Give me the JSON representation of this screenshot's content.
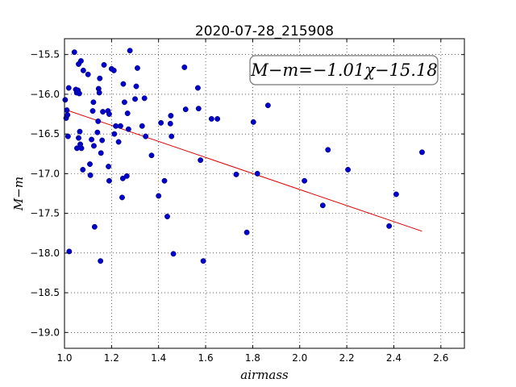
{
  "chart_data": {
    "type": "scatter",
    "title": "2020-07-28_215908",
    "xlabel": "airmass",
    "ylabel": "M−m",
    "xlim": [
      1.0,
      2.7
    ],
    "ylim": [
      -19.2,
      -15.3
    ],
    "y_inverted": true,
    "grid": true,
    "x_ticks": [
      1.0,
      1.2,
      1.4,
      1.6,
      1.8,
      2.0,
      2.2,
      2.4,
      2.6
    ],
    "x_tick_labels": [
      "1.0",
      "1.2",
      "1.4",
      "1.6",
      "1.8",
      "2.0",
      "2.2",
      "2.4",
      "2.6"
    ],
    "y_ticks": [
      -15.5,
      -16.0,
      -16.5,
      -17.0,
      -17.5,
      -18.0,
      -18.5,
      -19.0
    ],
    "y_tick_labels": [
      "−15.5",
      "−16.0",
      "−16.5",
      "−17.0",
      "−17.5",
      "−18.0",
      "−18.5",
      "−19.0"
    ],
    "annotation": "M−m=−1.01χ−15.18",
    "fit_line": {
      "slope": -1.01,
      "intercept": -15.18,
      "x_range": [
        1.0,
        2.52
      ],
      "color": "#dd0000"
    },
    "point_color": "#0000cc",
    "points": [
      {
        "x": 1.003,
        "y": -16.07
      },
      {
        "x": 1.007,
        "y": -16.3
      },
      {
        "x": 1.01,
        "y": -16.2
      },
      {
        "x": 1.013,
        "y": -16.26
      },
      {
        "x": 1.018,
        "y": -15.92
      },
      {
        "x": 1.015,
        "y": -16.53
      },
      {
        "x": 1.02,
        "y": -17.98
      },
      {
        "x": 1.042,
        "y": -15.47
      },
      {
        "x": 1.048,
        "y": -15.94
      },
      {
        "x": 1.052,
        "y": -15.98
      },
      {
        "x": 1.057,
        "y": -15.95
      },
      {
        "x": 1.06,
        "y": -15.62
      },
      {
        "x": 1.063,
        "y": -15.99
      },
      {
        "x": 1.07,
        "y": -15.58
      },
      {
        "x": 1.08,
        "y": -15.7
      },
      {
        "x": 1.1,
        "y": -15.75
      },
      {
        "x": 1.053,
        "y": -16.68
      },
      {
        "x": 1.06,
        "y": -16.55
      },
      {
        "x": 1.065,
        "y": -16.47
      },
      {
        "x": 1.067,
        "y": -16.63
      },
      {
        "x": 1.072,
        "y": -16.68
      },
      {
        "x": 1.078,
        "y": -16.95
      },
      {
        "x": 1.108,
        "y": -16.88
      },
      {
        "x": 1.11,
        "y": -17.02
      },
      {
        "x": 1.115,
        "y": -16.57
      },
      {
        "x": 1.12,
        "y": -16.21
      },
      {
        "x": 1.123,
        "y": -16.1
      },
      {
        "x": 1.125,
        "y": -16.65
      },
      {
        "x": 1.128,
        "y": -17.67
      },
      {
        "x": 1.14,
        "y": -16.48
      },
      {
        "x": 1.143,
        "y": -16.34
      },
      {
        "x": 1.145,
        "y": -15.93
      },
      {
        "x": 1.148,
        "y": -15.98
      },
      {
        "x": 1.15,
        "y": -15.8
      },
      {
        "x": 1.153,
        "y": -18.1
      },
      {
        "x": 1.155,
        "y": -16.74
      },
      {
        "x": 1.16,
        "y": -16.58
      },
      {
        "x": 1.163,
        "y": -16.22
      },
      {
        "x": 1.168,
        "y": -15.63
      },
      {
        "x": 1.185,
        "y": -16.21
      },
      {
        "x": 1.19,
        "y": -16.25
      },
      {
        "x": 1.187,
        "y": -16.91
      },
      {
        "x": 1.19,
        "y": -17.09
      },
      {
        "x": 1.2,
        "y": -15.68
      },
      {
        "x": 1.21,
        "y": -15.7
      },
      {
        "x": 1.212,
        "y": -16.5
      },
      {
        "x": 1.218,
        "y": -16.4
      },
      {
        "x": 1.23,
        "y": -16.6
      },
      {
        "x": 1.238,
        "y": -16.4
      },
      {
        "x": 1.245,
        "y": -17.3
      },
      {
        "x": 1.248,
        "y": -17.06
      },
      {
        "x": 1.25,
        "y": -15.87
      },
      {
        "x": 1.255,
        "y": -16.1
      },
      {
        "x": 1.265,
        "y": -17.03
      },
      {
        "x": 1.268,
        "y": -16.24
      },
      {
        "x": 1.272,
        "y": -16.44
      },
      {
        "x": 1.278,
        "y": -15.45
      },
      {
        "x": 1.3,
        "y": -16.06
      },
      {
        "x": 1.305,
        "y": -15.9
      },
      {
        "x": 1.31,
        "y": -15.67
      },
      {
        "x": 1.33,
        "y": -16.4
      },
      {
        "x": 1.34,
        "y": -16.05
      },
      {
        "x": 1.345,
        "y": -16.53
      },
      {
        "x": 1.37,
        "y": -16.77
      },
      {
        "x": 1.4,
        "y": -17.28
      },
      {
        "x": 1.41,
        "y": -16.36
      },
      {
        "x": 1.425,
        "y": -17.09
      },
      {
        "x": 1.437,
        "y": -17.54
      },
      {
        "x": 1.45,
        "y": -16.37
      },
      {
        "x": 1.452,
        "y": -16.27
      },
      {
        "x": 1.455,
        "y": -16.53
      },
      {
        "x": 1.463,
        "y": -18.01
      },
      {
        "x": 1.51,
        "y": -15.66
      },
      {
        "x": 1.515,
        "y": -16.19
      },
      {
        "x": 1.567,
        "y": -15.92
      },
      {
        "x": 1.57,
        "y": -16.18
      },
      {
        "x": 1.578,
        "y": -16.83
      },
      {
        "x": 1.59,
        "y": -18.1
      },
      {
        "x": 1.625,
        "y": -16.31
      },
      {
        "x": 1.65,
        "y": -16.31
      },
      {
        "x": 1.73,
        "y": -17.01
      },
      {
        "x": 1.775,
        "y": -17.74
      },
      {
        "x": 1.803,
        "y": -16.35
      },
      {
        "x": 1.82,
        "y": -17.0
      },
      {
        "x": 1.865,
        "y": -16.14
      },
      {
        "x": 2.02,
        "y": -17.09
      },
      {
        "x": 2.098,
        "y": -17.4
      },
      {
        "x": 2.12,
        "y": -16.7
      },
      {
        "x": 2.205,
        "y": -16.95
      },
      {
        "x": 2.38,
        "y": -17.66
      },
      {
        "x": 2.41,
        "y": -17.26
      },
      {
        "x": 2.52,
        "y": -16.73
      }
    ]
  }
}
